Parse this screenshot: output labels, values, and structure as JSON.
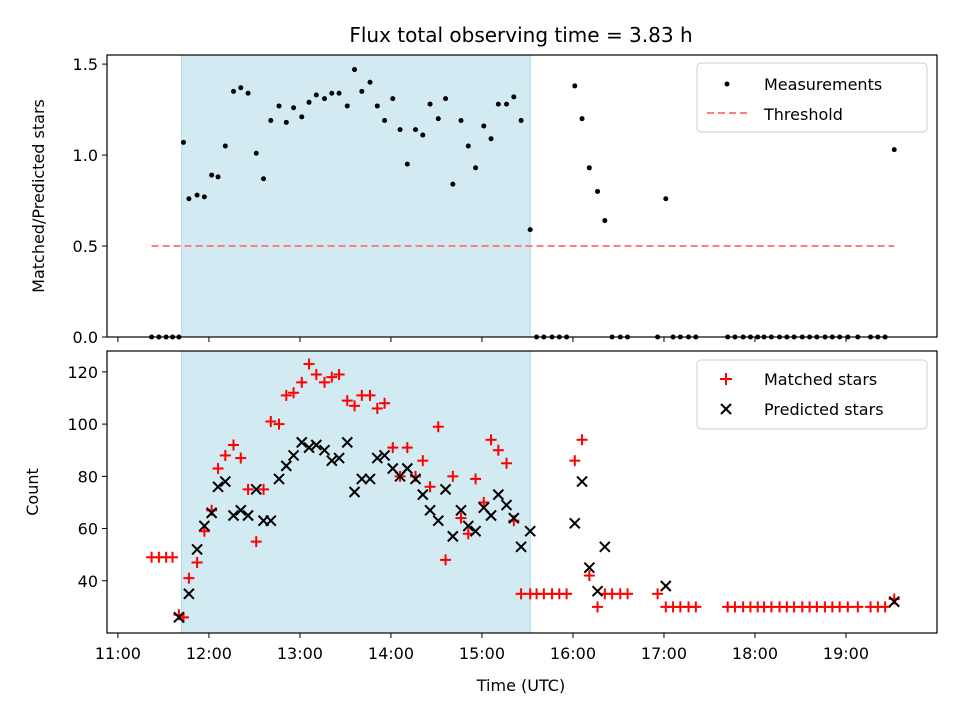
{
  "title": "Flux total observing time = 3.83 h",
  "colors": {
    "shade": "#add8e6",
    "threshold": "#ff7f7f",
    "matched": "#ff0000",
    "predicted": "#000000",
    "measure": "#000000"
  },
  "chart_data": [
    {
      "type": "scatter",
      "ylabel": "Matched/Predicted stars",
      "xlabel": "",
      "x_unit": "hours UTC",
      "xlim": [
        10.88,
        20.0
      ],
      "ylim": [
        0,
        1.55
      ],
      "yticks": [
        0,
        0.5,
        1.0,
        1.5
      ],
      "ytick_labels": [
        "0.0",
        "0.5",
        "1.0",
        "1.5"
      ],
      "shaded_span": [
        11.7,
        15.53
      ],
      "legend_position": "upper right",
      "legend": [
        {
          "label": "Measurements",
          "marker": "dot",
          "color": "#000000"
        },
        {
          "label": "Threshold",
          "marker": "dashed-line",
          "color": "#ff7f7f"
        }
      ],
      "threshold": {
        "value": 0.5,
        "x_range": [
          11.37,
          19.53
        ]
      },
      "series": [
        {
          "name": "Measurements",
          "x": [
            11.37,
            11.45,
            11.53,
            11.6,
            11.67,
            11.72,
            11.78,
            11.87,
            11.95,
            12.03,
            12.1,
            12.18,
            12.27,
            12.35,
            12.43,
            12.52,
            12.6,
            12.68,
            12.77,
            12.85,
            12.93,
            13.02,
            13.1,
            13.18,
            13.27,
            13.35,
            13.43,
            13.52,
            13.6,
            13.68,
            13.77,
            13.85,
            13.93,
            14.02,
            14.1,
            14.18,
            14.27,
            14.35,
            14.43,
            14.52,
            14.6,
            14.68,
            14.77,
            14.85,
            14.93,
            15.02,
            15.1,
            15.18,
            15.27,
            15.35,
            15.43,
            15.53,
            15.6,
            15.68,
            15.77,
            15.85,
            15.93,
            16.02,
            16.1,
            16.18,
            16.27,
            16.35,
            16.43,
            16.52,
            16.6,
            16.93,
            17.02,
            17.1,
            17.18,
            17.27,
            17.35,
            17.7,
            17.78,
            17.87,
            17.95,
            18.03,
            18.1,
            18.18,
            18.27,
            18.35,
            18.43,
            18.52,
            18.6,
            18.68,
            18.77,
            18.85,
            18.93,
            19.02,
            19.13,
            19.27,
            19.35,
            19.43,
            19.53
          ],
          "y": [
            0.0,
            0.0,
            0.0,
            0.0,
            0.0,
            1.07,
            0.76,
            0.78,
            0.77,
            0.89,
            0.88,
            1.05,
            1.35,
            1.37,
            1.34,
            1.01,
            0.87,
            1.19,
            1.27,
            1.18,
            1.26,
            1.21,
            1.29,
            1.33,
            1.31,
            1.34,
            1.34,
            1.27,
            1.47,
            1.35,
            1.4,
            1.27,
            1.19,
            1.31,
            1.14,
            0.95,
            1.14,
            1.11,
            1.28,
            1.2,
            1.31,
            0.84,
            1.19,
            1.05,
            0.93,
            1.16,
            1.09,
            1.28,
            1.28,
            1.32,
            1.19,
            0.59,
            0.0,
            0.0,
            0.0,
            0.0,
            0.0,
            1.38,
            1.2,
            0.93,
            0.8,
            0.64,
            0.0,
            0.0,
            0.0,
            0.0,
            0.76,
            0.0,
            0.0,
            0.0,
            0.0,
            0.0,
            0.0,
            0.0,
            0.0,
            0.0,
            0.0,
            0.0,
            0.0,
            0.0,
            0.0,
            0.0,
            0.0,
            0.0,
            0.0,
            0.0,
            0.0,
            0.0,
            0.0,
            0.0,
            0.0,
            0.0,
            1.03
          ]
        }
      ]
    },
    {
      "type": "scatter",
      "ylabel": "Count",
      "xlabel": "Time (UTC)",
      "x_unit": "hours UTC",
      "xlim": [
        10.88,
        20.0
      ],
      "ylim": [
        20,
        128
      ],
      "yticks": [
        40,
        60,
        80,
        100,
        120
      ],
      "ytick_labels": [
        "40",
        "60",
        "80",
        "100",
        "120"
      ],
      "xticks": [
        11,
        12,
        13,
        14,
        15,
        16,
        17,
        18,
        19
      ],
      "xtick_labels": [
        "11:00",
        "12:00",
        "13:00",
        "14:00",
        "15:00",
        "16:00",
        "17:00",
        "18:00",
        "19:00"
      ],
      "shaded_span": [
        11.7,
        15.53
      ],
      "legend_position": "upper right",
      "legend": [
        {
          "label": "Matched stars",
          "marker": "plus",
          "color": "#ff0000"
        },
        {
          "label": "Predicted stars",
          "marker": "x",
          "color": "#000000"
        }
      ],
      "series": [
        {
          "name": "Matched stars",
          "x": [
            11.37,
            11.45,
            11.53,
            11.6,
            11.67,
            11.72,
            11.78,
            11.87,
            11.95,
            12.03,
            12.1,
            12.18,
            12.27,
            12.35,
            12.43,
            12.52,
            12.6,
            12.68,
            12.77,
            12.85,
            12.93,
            13.02,
            13.1,
            13.18,
            13.27,
            13.35,
            13.43,
            13.52,
            13.6,
            13.68,
            13.77,
            13.85,
            13.93,
            14.02,
            14.1,
            14.18,
            14.27,
            14.35,
            14.43,
            14.52,
            14.6,
            14.68,
            14.77,
            14.85,
            14.93,
            15.02,
            15.1,
            15.18,
            15.27,
            15.35,
            15.43,
            15.53,
            15.6,
            15.68,
            15.77,
            15.85,
            15.93,
            16.02,
            16.1,
            16.18,
            16.27,
            16.35,
            16.43,
            16.52,
            16.6,
            16.93,
            17.02,
            17.1,
            17.18,
            17.27,
            17.35,
            17.7,
            17.78,
            17.87,
            17.95,
            18.03,
            18.1,
            18.18,
            18.27,
            18.35,
            18.43,
            18.52,
            18.6,
            18.68,
            18.77,
            18.85,
            18.93,
            19.02,
            19.13,
            19.27,
            19.35,
            19.43,
            19.53
          ],
          "y": [
            49,
            49,
            49,
            49,
            27,
            26,
            41,
            47,
            59,
            67,
            83,
            88,
            92,
            87,
            75,
            55,
            75,
            101,
            100,
            111,
            112,
            116,
            123,
            119,
            116,
            118,
            119,
            109,
            107,
            111,
            111,
            106,
            108,
            91,
            80,
            91,
            80,
            86,
            76,
            99,
            48,
            80,
            64,
            58,
            79,
            70,
            94,
            90,
            85,
            63,
            35,
            35,
            35,
            35,
            35,
            35,
            35,
            86,
            94,
            42,
            30,
            35,
            35,
            35,
            35,
            35,
            30,
            30,
            30,
            30,
            30,
            30,
            30,
            30,
            30,
            30,
            30,
            30,
            30,
            30,
            30,
            30,
            30,
            30,
            30,
            30,
            30,
            30,
            30,
            30,
            30,
            30,
            33
          ]
        },
        {
          "name": "Predicted stars",
          "x": [
            11.67,
            11.78,
            11.87,
            11.95,
            12.03,
            12.1,
            12.18,
            12.27,
            12.35,
            12.43,
            12.52,
            12.6,
            12.68,
            12.77,
            12.85,
            12.93,
            13.02,
            13.1,
            13.18,
            13.27,
            13.35,
            13.43,
            13.52,
            13.6,
            13.68,
            13.77,
            13.85,
            13.93,
            14.02,
            14.1,
            14.18,
            14.27,
            14.35,
            14.43,
            14.52,
            14.6,
            14.68,
            14.77,
            14.85,
            14.93,
            15.02,
            15.1,
            15.18,
            15.27,
            15.35,
            15.43,
            15.53,
            16.02,
            16.1,
            16.18,
            16.27,
            16.35,
            17.02,
            19.53
          ],
          "y": [
            26,
            35,
            52,
            61,
            66,
            76,
            78,
            65,
            67,
            65,
            75,
            63,
            63,
            79,
            84,
            88,
            93,
            91,
            92,
            90,
            86,
            87,
            93,
            74,
            79,
            79,
            87,
            88,
            83,
            80,
            83,
            79,
            73,
            67,
            63,
            75,
            57,
            67,
            61,
            59,
            68,
            65,
            73,
            69,
            64,
            53,
            59,
            62,
            78,
            45,
            36,
            53,
            38,
            32
          ]
        }
      ]
    }
  ]
}
